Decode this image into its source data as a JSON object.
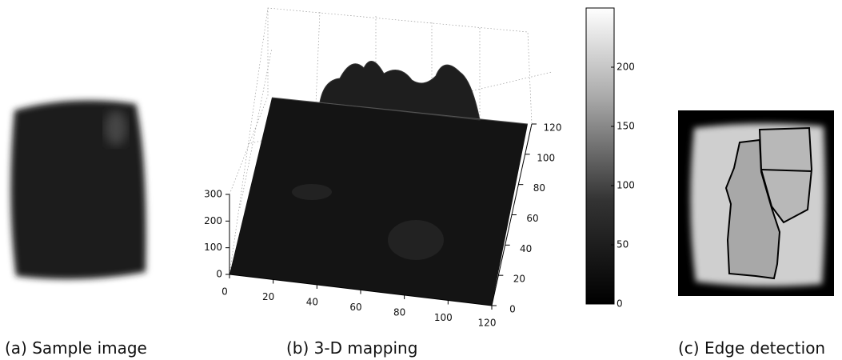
{
  "panels": [
    {
      "caption": "(a) Sample image"
    },
    {
      "caption": "(b) 3-D mapping",
      "x_axis": {
        "range": [
          0,
          120
        ],
        "ticks": [
          0,
          20,
          40,
          60,
          80,
          100,
          120
        ]
      },
      "y_axis": {
        "range": [
          0,
          120
        ],
        "ticks": [
          0,
          20,
          40,
          60,
          80,
          100,
          120
        ]
      },
      "z_axis": {
        "range": [
          0,
          300
        ],
        "ticks": [
          0,
          100,
          200,
          300
        ]
      },
      "colorbar": {
        "range": [
          0,
          250
        ],
        "ticks": [
          0,
          50,
          100,
          150,
          200
        ]
      }
    },
    {
      "caption": "(c) Edge detection"
    }
  ]
}
